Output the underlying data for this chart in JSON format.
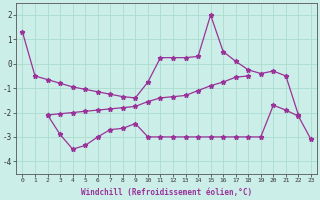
{
  "xlabel": "Windchill (Refroidissement éolien,°C)",
  "background_color": "#cceee8",
  "grid_color": "#aaddcc",
  "line_color": "#993399",
  "ylim": [
    -4.5,
    2.5
  ],
  "yticks": [
    -4,
    -3,
    -2,
    -1,
    0,
    1,
    2
  ],
  "xticks": [
    0,
    1,
    2,
    3,
    4,
    5,
    6,
    7,
    8,
    9,
    10,
    11,
    12,
    13,
    14,
    15,
    16,
    17,
    18,
    19,
    20,
    21,
    22,
    23
  ],
  "figsize": [
    3.2,
    2.0
  ],
  "dpi": 100,
  "line1": {
    "x": [
      0,
      1,
      2,
      3,
      4,
      5,
      6,
      7,
      8,
      9,
      10,
      11,
      12,
      13,
      14,
      15,
      16,
      17,
      18,
      19,
      20,
      21,
      22
    ],
    "y": [
      1.3,
      -0.5,
      -0.65,
      -0.8,
      -0.95,
      -1.05,
      -1.15,
      -1.25,
      -1.35,
      -1.4,
      -0.75,
      0.25,
      0.25,
      0.25,
      0.3,
      2.0,
      0.5,
      0.1,
      -0.25,
      -0.4,
      -0.3,
      -0.5,
      -2.1
    ]
  },
  "line2": {
    "x": [
      2,
      3,
      4,
      5,
      6,
      7,
      8,
      9,
      10,
      11,
      12,
      13,
      14,
      15,
      16,
      17,
      18
    ],
    "y": [
      -2.1,
      -2.05,
      -2.0,
      -1.95,
      -1.9,
      -1.85,
      -1.8,
      -1.75,
      -1.55,
      -1.4,
      -1.35,
      -1.3,
      -1.1,
      -0.9,
      -0.75,
      -0.55,
      -0.5
    ]
  },
  "line3": {
    "x": [
      2,
      3,
      4,
      5,
      6,
      7,
      8,
      9,
      10,
      11,
      12,
      13,
      14,
      15,
      16,
      17,
      18,
      19,
      20,
      21,
      22,
      23
    ],
    "y": [
      -2.1,
      -2.9,
      -3.5,
      -3.35,
      -3.0,
      -2.7,
      -2.65,
      -2.45,
      -3.0,
      -3.0,
      -3.0,
      -3.0,
      -3.0,
      -3.0,
      -3.0,
      -3.0,
      -3.0,
      -3.0,
      -1.7,
      -1.9,
      -2.15,
      -3.1
    ]
  }
}
